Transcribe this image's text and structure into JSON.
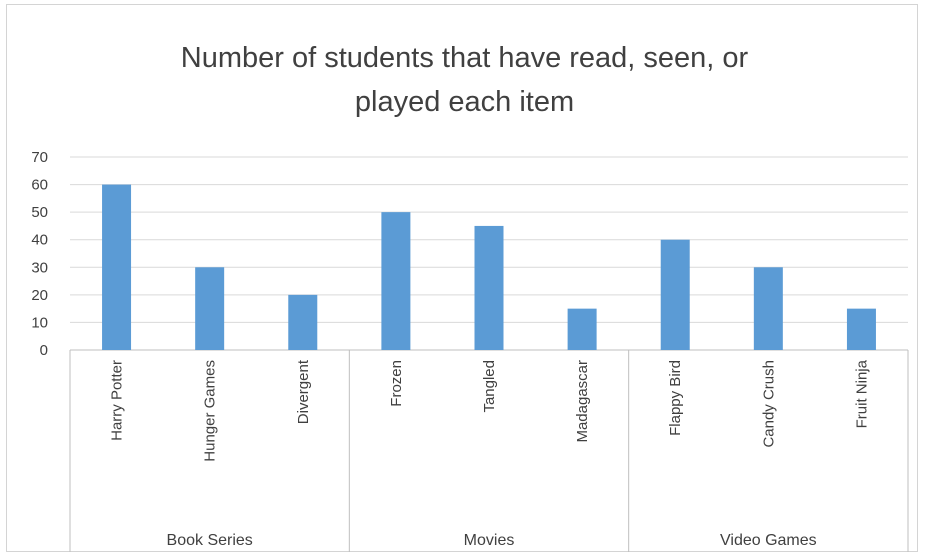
{
  "chart_data": {
    "type": "bar",
    "title_lines": [
      "Number of students that have read, seen, or",
      "played each item"
    ],
    "groups": [
      {
        "label": "Book Series",
        "categories": [
          "Harry Potter",
          "Hunger Games",
          "Divergent"
        ],
        "values": [
          60,
          30,
          20
        ]
      },
      {
        "label": "Movies",
        "categories": [
          "Frozen",
          "Tangled",
          "Madagascar"
        ],
        "values": [
          50,
          45,
          15
        ]
      },
      {
        "label": "Video Games",
        "categories": [
          "Flappy Bird",
          "Candy Crush",
          "Fruit Ninja"
        ],
        "values": [
          40,
          30,
          15
        ]
      }
    ],
    "xlabel": "",
    "ylabel": "",
    "ylim": [
      0,
      70
    ],
    "yticks": [
      "0",
      "10",
      "20",
      "30",
      "40",
      "50",
      "60",
      "70"
    ],
    "grid": true,
    "bar_color": "#5b9bd5",
    "grid_color": "#d9d9d9",
    "axis_color": "#bfbfbf"
  }
}
